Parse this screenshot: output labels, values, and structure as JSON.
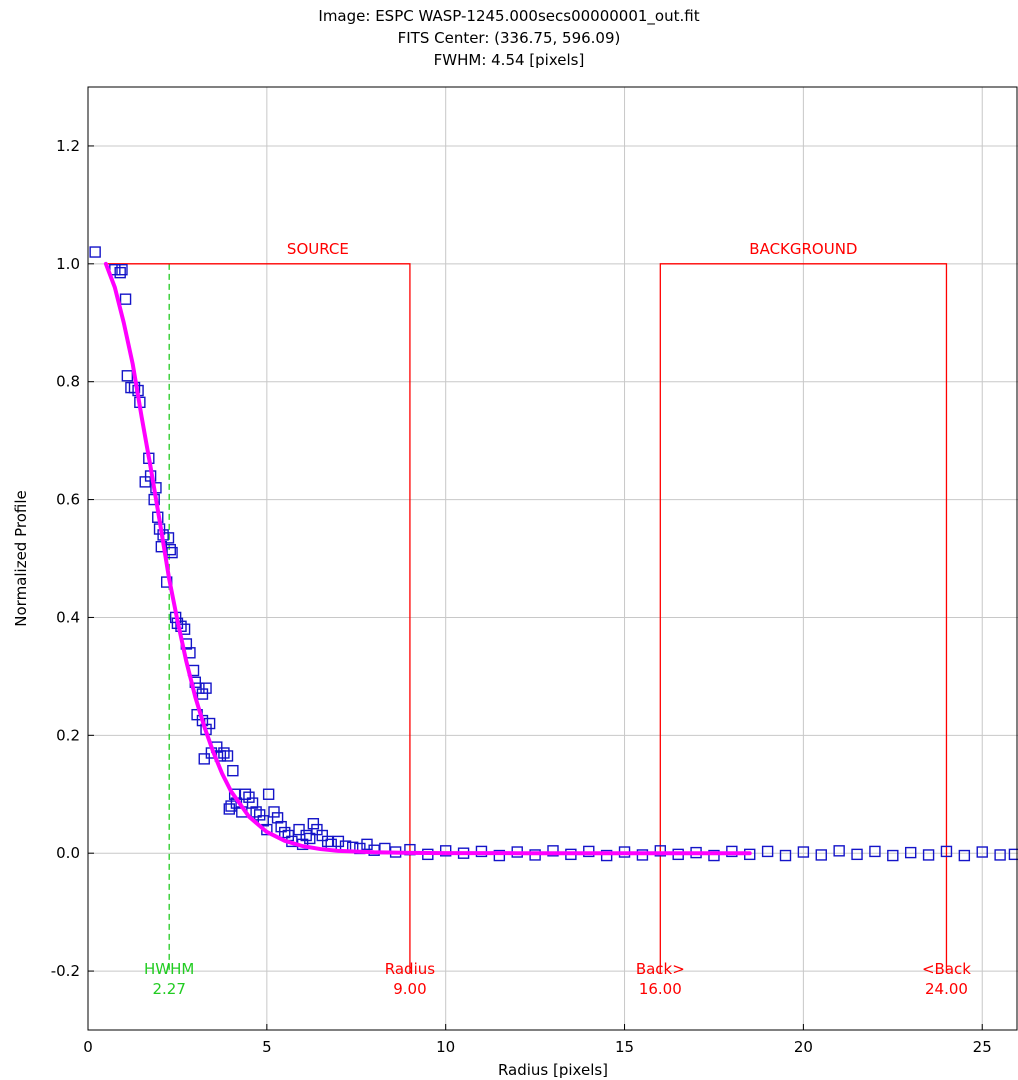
{
  "title_lines": [
    "Image: ESPC WASP-1245.000secs00000001_out.fit",
    "FITS Center: (336.75,  596.09)",
    "FWHM: 4.54 [pixels]"
  ],
  "chart_data": {
    "type": "scatter",
    "xlabel": "Radius [pixels]",
    "ylabel": "Normalized Profile",
    "xlim": [
      0,
      26
    ],
    "ylim": [
      -0.3,
      1.3
    ],
    "x_ticks": [
      0,
      5,
      10,
      15,
      20,
      25
    ],
    "y_ticks": [
      -0.2,
      0.0,
      0.2,
      0.4,
      0.6,
      0.8,
      1.0,
      1.2
    ],
    "x_tick_labels": [
      "0",
      "5",
      "10",
      "15",
      "20",
      "25"
    ],
    "y_tick_labels": [
      "-0.2",
      "0.0",
      "0.2",
      "0.4",
      "0.6",
      "0.8",
      "1.0",
      "1.2"
    ],
    "grid": true,
    "colors": {
      "points": "#1414c8",
      "fit": "#ff00ff",
      "aperture": "#ff0000",
      "hwhm": "#22cc22",
      "grid": "#c8c8c8"
    },
    "series": [
      {
        "type": "scatter",
        "marker": "open-square",
        "points": [
          [
            0.2,
            1.02
          ],
          [
            0.75,
            0.99
          ],
          [
            0.9,
            0.985
          ],
          [
            0.95,
            0.99
          ],
          [
            1.05,
            0.94
          ],
          [
            1.1,
            0.81
          ],
          [
            1.2,
            0.79
          ],
          [
            1.3,
            0.79
          ],
          [
            1.4,
            0.785
          ],
          [
            1.45,
            0.765
          ],
          [
            1.6,
            0.63
          ],
          [
            1.7,
            0.67
          ],
          [
            1.75,
            0.64
          ],
          [
            1.85,
            0.6
          ],
          [
            1.9,
            0.62
          ],
          [
            1.95,
            0.57
          ],
          [
            2.0,
            0.55
          ],
          [
            2.05,
            0.52
          ],
          [
            2.1,
            0.54
          ],
          [
            2.2,
            0.46
          ],
          [
            2.25,
            0.535
          ],
          [
            2.3,
            0.515
          ],
          [
            2.35,
            0.51
          ],
          [
            2.45,
            0.4
          ],
          [
            2.5,
            0.39
          ],
          [
            2.6,
            0.385
          ],
          [
            2.7,
            0.38
          ],
          [
            2.75,
            0.355
          ],
          [
            2.85,
            0.34
          ],
          [
            2.95,
            0.31
          ],
          [
            3.0,
            0.29
          ],
          [
            3.1,
            0.28
          ],
          [
            3.2,
            0.27
          ],
          [
            3.3,
            0.28
          ],
          [
            3.05,
            0.235
          ],
          [
            3.2,
            0.225
          ],
          [
            3.3,
            0.21
          ],
          [
            3.4,
            0.22
          ],
          [
            3.25,
            0.16
          ],
          [
            3.45,
            0.17
          ],
          [
            3.6,
            0.18
          ],
          [
            3.7,
            0.165
          ],
          [
            3.8,
            0.17
          ],
          [
            3.9,
            0.165
          ],
          [
            4.05,
            0.14
          ],
          [
            4.1,
            0.1
          ],
          [
            4.0,
            0.08
          ],
          [
            3.95,
            0.075
          ],
          [
            4.15,
            0.085
          ],
          [
            4.3,
            0.07
          ],
          [
            4.4,
            0.1
          ],
          [
            4.5,
            0.095
          ],
          [
            4.6,
            0.085
          ],
          [
            4.7,
            0.07
          ],
          [
            4.8,
            0.065
          ],
          [
            4.9,
            0.055
          ],
          [
            5.0,
            0.04
          ],
          [
            5.05,
            0.1
          ],
          [
            5.2,
            0.07
          ],
          [
            5.3,
            0.06
          ],
          [
            5.4,
            0.045
          ],
          [
            5.5,
            0.035
          ],
          [
            5.6,
            0.03
          ],
          [
            5.7,
            0.02
          ],
          [
            5.9,
            0.04
          ],
          [
            6.0,
            0.015
          ],
          [
            6.1,
            0.03
          ],
          [
            6.2,
            0.025
          ],
          [
            6.3,
            0.05
          ],
          [
            6.4,
            0.04
          ],
          [
            6.55,
            0.03
          ],
          [
            6.7,
            0.02
          ],
          [
            6.8,
            0.015
          ],
          [
            7.0,
            0.02
          ],
          [
            7.2,
            0.012
          ],
          [
            7.4,
            0.01
          ],
          [
            7.6,
            0.008
          ],
          [
            7.8,
            0.015
          ],
          [
            8.0,
            0.005
          ],
          [
            8.3,
            0.008
          ],
          [
            8.6,
            0.002
          ],
          [
            9.0,
            0.006
          ],
          [
            9.5,
            -0.002
          ],
          [
            10.0,
            0.004
          ],
          [
            10.5,
            0.0
          ],
          [
            11.0,
            0.003
          ],
          [
            11.5,
            -0.004
          ],
          [
            12.0,
            0.002
          ],
          [
            12.5,
            -0.003
          ],
          [
            13.0,
            0.004
          ],
          [
            13.5,
            -0.002
          ],
          [
            14.0,
            0.003
          ],
          [
            14.5,
            -0.004
          ],
          [
            15.0,
            0.002
          ],
          [
            15.5,
            -0.003
          ],
          [
            16.0,
            0.004
          ],
          [
            16.5,
            -0.002
          ],
          [
            17.0,
            0.001
          ],
          [
            17.5,
            -0.004
          ],
          [
            18.0,
            0.003
          ],
          [
            18.5,
            -0.002
          ],
          [
            19.0,
            0.003
          ],
          [
            19.5,
            -0.004
          ],
          [
            20.0,
            0.002
          ],
          [
            20.5,
            -0.003
          ],
          [
            21.0,
            0.004
          ],
          [
            21.5,
            -0.002
          ],
          [
            22.0,
            0.003
          ],
          [
            22.5,
            -0.004
          ],
          [
            23.0,
            0.001
          ],
          [
            23.5,
            -0.003
          ],
          [
            24.0,
            0.003
          ],
          [
            24.5,
            -0.004
          ],
          [
            25.0,
            0.002
          ],
          [
            25.5,
            -0.003
          ],
          [
            25.9,
            -0.002
          ]
        ]
      },
      {
        "type": "line",
        "name": "",
        "points": [
          [
            0.5,
            1.0
          ],
          [
            0.75,
            0.96
          ],
          [
            1.0,
            0.9
          ],
          [
            1.25,
            0.83
          ],
          [
            1.5,
            0.74
          ],
          [
            1.75,
            0.655
          ],
          [
            2.0,
            0.565
          ],
          [
            2.27,
            0.465
          ],
          [
            2.5,
            0.395
          ],
          [
            2.75,
            0.325
          ],
          [
            3.0,
            0.265
          ],
          [
            3.25,
            0.215
          ],
          [
            3.5,
            0.172
          ],
          [
            3.75,
            0.135
          ],
          [
            4.0,
            0.105
          ],
          [
            4.5,
            0.062
          ],
          [
            5.0,
            0.036
          ],
          [
            5.5,
            0.021
          ],
          [
            6.0,
            0.012
          ],
          [
            6.5,
            0.007
          ],
          [
            7.0,
            0.004
          ],
          [
            8.0,
            0.0015
          ],
          [
            9.0,
            0.0005
          ],
          [
            10.0,
            0.0002
          ],
          [
            12.0,
            0.0
          ],
          [
            14.0,
            0.0
          ],
          [
            16.0,
            0.0
          ],
          [
            18.5,
            0.0
          ]
        ]
      }
    ],
    "apertures": {
      "hwhm": {
        "value": 2.27,
        "label": "HWHM",
        "value_label": "2.27"
      },
      "radius": {
        "value": 9.0,
        "label": "Radius",
        "value_label": "9.00"
      },
      "back_inner": {
        "value": 16.0,
        "label": "Back>",
        "value_label": "16.00"
      },
      "back_outer": {
        "value": 24.0,
        "label": "<Back",
        "value_label": "24.00"
      },
      "source_label": "SOURCE",
      "background_label": "BACKGROUND"
    }
  }
}
